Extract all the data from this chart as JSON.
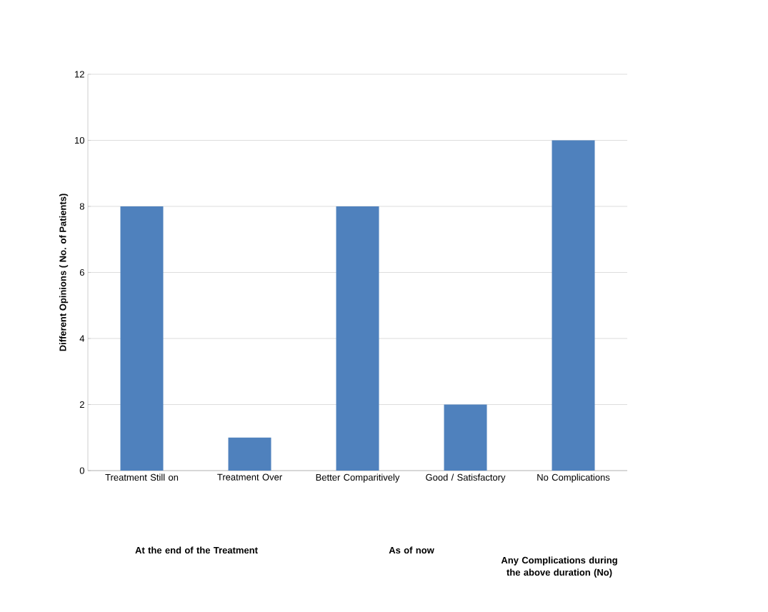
{
  "chart_data": {
    "type": "bar",
    "ylabel": "Different Opinions ( No. of Patients)",
    "categories": [
      "Treatment Still on",
      "Treatment Over",
      "Better Comparitively",
      "Good / Satisfactory",
      "No Complications"
    ],
    "values": [
      8,
      1,
      8,
      2,
      10
    ],
    "color": "#4f81bd",
    "ylim": [
      0,
      12
    ],
    "yticks": [
      0,
      2,
      4,
      6,
      8,
      10,
      12
    ],
    "grid": "y",
    "annotations": [
      "At the end of the Treatment",
      "As of now",
      "Any Complications during the above duration (No)"
    ]
  }
}
